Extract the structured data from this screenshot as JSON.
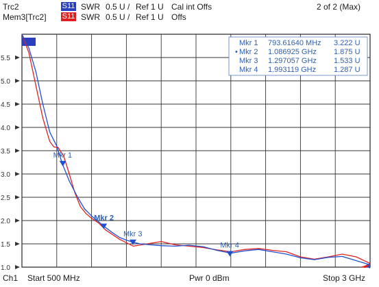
{
  "header": {
    "trace1_name": "Trc2",
    "trace1_badge": "S11",
    "trace1_format": "SWR",
    "trace1_scale": "0.5 U /",
    "trace1_ref": "Ref 1 U",
    "trace1_cal": "Cal int Offs",
    "page": "2 of 2 (Max)",
    "trace2_name": "Mem3[Trc2]",
    "trace2_badge": "S11",
    "trace2_format": "SWR",
    "trace2_scale": "0.5 U /",
    "trace2_ref": "Ref 1 U",
    "trace2_cal": "Offs"
  },
  "footer": {
    "channel": "Ch1",
    "start": "Start  500 MHz",
    "power": "Pwr  0 dBm",
    "stop": "Stop  3 GHz"
  },
  "marker_table": [
    {
      "active": "",
      "name": "Mkr 1",
      "freq": "793.61640 MHz",
      "value": "3.222  U"
    },
    {
      "active": "•",
      "name": "Mkr 2",
      "freq": "1.086925 GHz",
      "value": "1.875  U"
    },
    {
      "active": "",
      "name": "Mkr 3",
      "freq": "1.297057 GHz",
      "value": "1.533  U"
    },
    {
      "active": "",
      "name": "Mkr 4",
      "freq": "1.993119 GHz",
      "value": "1.287  U"
    }
  ],
  "colors": {
    "trace_blue": "#1f4fd0",
    "trace_red": "#e02020",
    "badge_blue": "#2a3fc0",
    "badge_red": "#e02020",
    "grid": "#333333",
    "marker_text": "#2c5fb0"
  },
  "chart_data": {
    "type": "line",
    "title": "",
    "xlabel": "",
    "ylabel": "",
    "x_unit": "GHz",
    "xlim": [
      0.5,
      3.0
    ],
    "ylim": [
      1.0,
      6.0
    ],
    "y_ticks": [
      "1.0",
      "1.5",
      "2.0",
      "2.5",
      "3.0",
      "3.5",
      "4.0",
      "4.5",
      "5.0",
      "5.5"
    ],
    "grid": true,
    "series": [
      {
        "name": "Trc2",
        "color": "#1f4fd0",
        "x": [
          0.5,
          0.55,
          0.6,
          0.65,
          0.7,
          0.75,
          0.79,
          0.84,
          0.9,
          0.95,
          1.0,
          1.04,
          1.09,
          1.15,
          1.2,
          1.25,
          1.3,
          1.35,
          1.42,
          1.5,
          1.6,
          1.7,
          1.8,
          1.9,
          2.0,
          2.1,
          2.2,
          2.3,
          2.4,
          2.5,
          2.6,
          2.7,
          2.8,
          2.9,
          3.0
        ],
        "y": [
          6.0,
          5.7,
          5.2,
          4.5,
          3.9,
          3.6,
          3.22,
          2.85,
          2.5,
          2.25,
          2.1,
          2.0,
          1.875,
          1.74,
          1.64,
          1.58,
          1.533,
          1.5,
          1.48,
          1.46,
          1.45,
          1.47,
          1.44,
          1.36,
          1.3,
          1.35,
          1.38,
          1.33,
          1.28,
          1.2,
          1.16,
          1.21,
          1.23,
          1.14,
          1.05
        ]
      },
      {
        "name": "Mem3[Trc2]",
        "color": "#e02020",
        "x": [
          0.5,
          0.55,
          0.6,
          0.65,
          0.7,
          0.73,
          0.76,
          0.8,
          0.84,
          0.88,
          0.92,
          0.96,
          1.0,
          1.05,
          1.1,
          1.2,
          1.3,
          1.4,
          1.5,
          1.6,
          1.7,
          1.8,
          1.9,
          2.0,
          2.1,
          2.2,
          2.3,
          2.4,
          2.5,
          2.6,
          2.7,
          2.8,
          2.9,
          3.0
        ],
        "y": [
          6.0,
          5.6,
          4.9,
          4.2,
          3.7,
          3.58,
          3.57,
          3.38,
          3.0,
          2.6,
          2.3,
          2.15,
          2.05,
          1.95,
          1.8,
          1.6,
          1.45,
          1.5,
          1.55,
          1.48,
          1.45,
          1.42,
          1.37,
          1.33,
          1.38,
          1.4,
          1.36,
          1.33,
          1.22,
          1.17,
          1.22,
          1.28,
          1.22,
          1.08
        ]
      }
    ],
    "markers": [
      {
        "label": "Mkr 1",
        "x": 0.7936164,
        "y": 3.222
      },
      {
        "label": "Mkr 2",
        "x": 1.086925,
        "y": 1.875
      },
      {
        "label": "Mkr 3",
        "x": 1.297057,
        "y": 1.533
      },
      {
        "label": "Mkr 4",
        "x": 1.993119,
        "y": 1.287
      }
    ]
  }
}
